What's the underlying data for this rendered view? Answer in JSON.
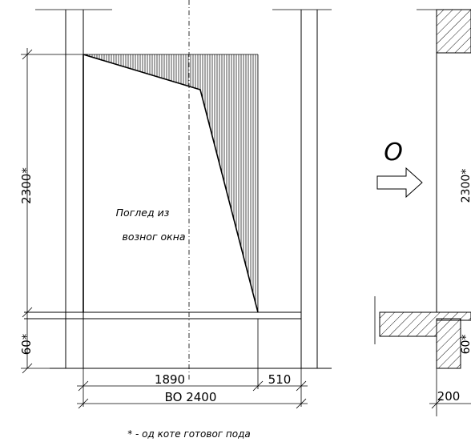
{
  "dimensions": {
    "left_width": "1890",
    "right_width": "510",
    "total_width": "BO 2400",
    "height_opening": "2300*",
    "height_sill": "60*",
    "side_height_partial": "2300*",
    "side_sill_partial": "60*",
    "side_wall": "200"
  },
  "labels": {
    "view_note_line1": "Поглед из",
    "view_note_line2": "возног окна",
    "view_marker": "O",
    "footnote": "* - од коте готовог пода"
  }
}
